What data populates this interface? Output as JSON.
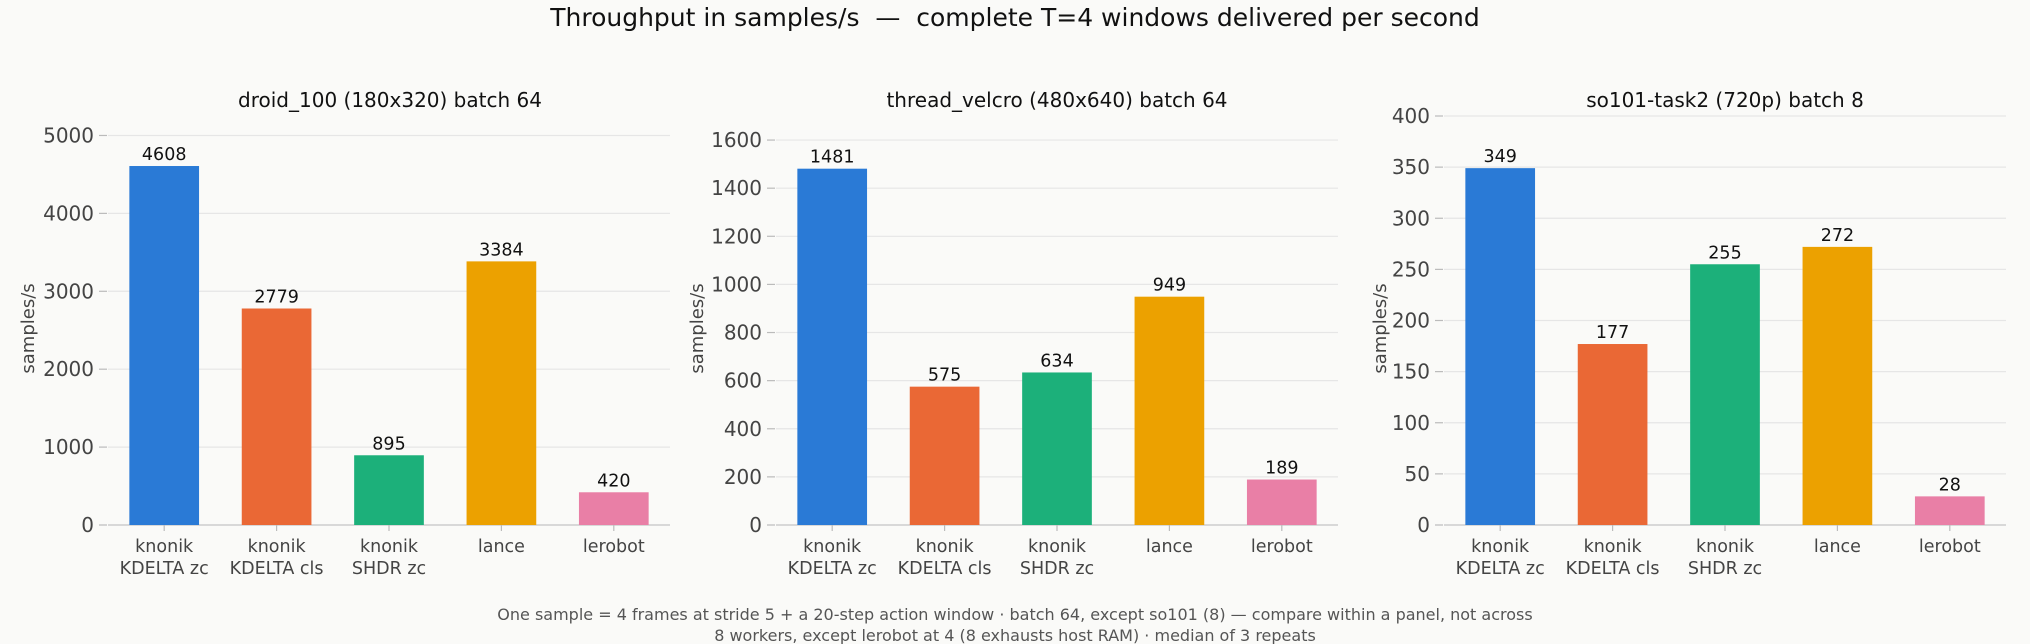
{
  "figure": {
    "title": "Throughput in samples/s  —  complete T=4 windows delivered per second",
    "footnote_lines": [
      "One sample = 4 frames at stride 5 + a 20-step action window · batch 64, except so101 (8) — compare within a panel, not across",
      "8 workers, except lerobot at 4 (8 exhausts host RAM) · median of 3 repeats"
    ]
  },
  "colors": {
    "knonik KDELTA zc": "#2a7ad6",
    "knonik KDELTA cls": "#ea6835",
    "knonik SHDR zc": "#1cb07a",
    "lance": "#eca100",
    "lerobot": "#e97fa6",
    "grid": "#e6e6e6",
    "axis": "#cfcfcf"
  },
  "chart_data": [
    {
      "type": "bar",
      "title": "droid_100 (180x320)   batch 64",
      "ylabel": "samples/s",
      "categories": [
        [
          "knonik",
          "KDELTA zc"
        ],
        [
          "knonik",
          "KDELTA cls"
        ],
        [
          "knonik",
          "SHDR zc"
        ],
        [
          "lance"
        ],
        [
          "lerobot"
        ]
      ],
      "values": [
        4608,
        2779,
        895,
        3384,
        420
      ],
      "ylim": [
        0,
        5250
      ],
      "yticks": [
        0,
        1000,
        2000,
        3000,
        4000,
        5000
      ],
      "grid": true
    },
    {
      "type": "bar",
      "title": "thread_velcro (480x640)   batch 64",
      "ylabel": "samples/s",
      "categories": [
        [
          "knonik",
          "KDELTA zc"
        ],
        [
          "knonik",
          "KDELTA cls"
        ],
        [
          "knonik",
          "SHDR zc"
        ],
        [
          "lance"
        ],
        [
          "lerobot"
        ]
      ],
      "values": [
        1481,
        575,
        634,
        949,
        189
      ],
      "ylim": [
        0,
        1700
      ],
      "yticks": [
        0,
        200,
        400,
        600,
        800,
        1000,
        1200,
        1400,
        1600
      ],
      "grid": true
    },
    {
      "type": "bar",
      "title": "so101-task2 (720p)   batch 8",
      "ylabel": "samples/s",
      "categories": [
        [
          "knonik",
          "KDELTA zc"
        ],
        [
          "knonik",
          "KDELTA cls"
        ],
        [
          "knonik",
          "SHDR zc"
        ],
        [
          "lance"
        ],
        [
          "lerobot"
        ]
      ],
      "values": [
        349,
        177,
        255,
        272,
        28
      ],
      "ylim": [
        0,
        400
      ],
      "yticks": [
        0,
        50,
        100,
        150,
        200,
        250,
        300,
        350,
        400
      ],
      "grid": true
    }
  ]
}
